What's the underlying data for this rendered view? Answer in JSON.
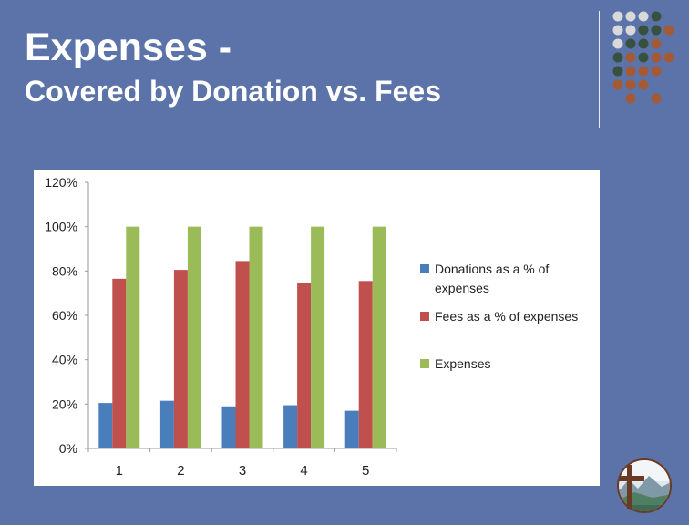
{
  "slide": {
    "title_line1": "Expenses -",
    "title_line2": "Covered by Donation vs. Fees",
    "background_color": "#5b73a8"
  },
  "decoration": {
    "dot_colors": [
      "#d9d9d9",
      "#37513e",
      "#a45a35"
    ]
  },
  "chart_data": {
    "type": "bar",
    "categories": [
      "1",
      "2",
      "3",
      "4",
      "5"
    ],
    "series": [
      {
        "name": "Donations as a % of expenses",
        "color": "#4a7ebb",
        "values": [
          20.5,
          21.5,
          19,
          19.5,
          17
        ]
      },
      {
        "name": "Fees as a % of expenses",
        "color": "#c0504d",
        "values": [
          76.5,
          80.5,
          84.5,
          74.5,
          75.5
        ]
      },
      {
        "name": "Expenses",
        "color": "#9bbb59",
        "values": [
          100,
          100,
          100,
          100,
          100
        ]
      }
    ],
    "ylim": [
      0,
      120
    ],
    "ytick_labels": [
      "0%",
      "20%",
      "40%",
      "60%",
      "80%",
      "100%",
      "120%"
    ],
    "ytick_values": [
      0,
      20,
      40,
      60,
      80,
      100,
      120
    ],
    "grid": false,
    "legend_position": "right",
    "legend_lines": [
      [
        "Donations as a % of",
        "expenses"
      ],
      [
        "Fees as a % of expenses"
      ],
      [
        "Expenses"
      ]
    ]
  }
}
